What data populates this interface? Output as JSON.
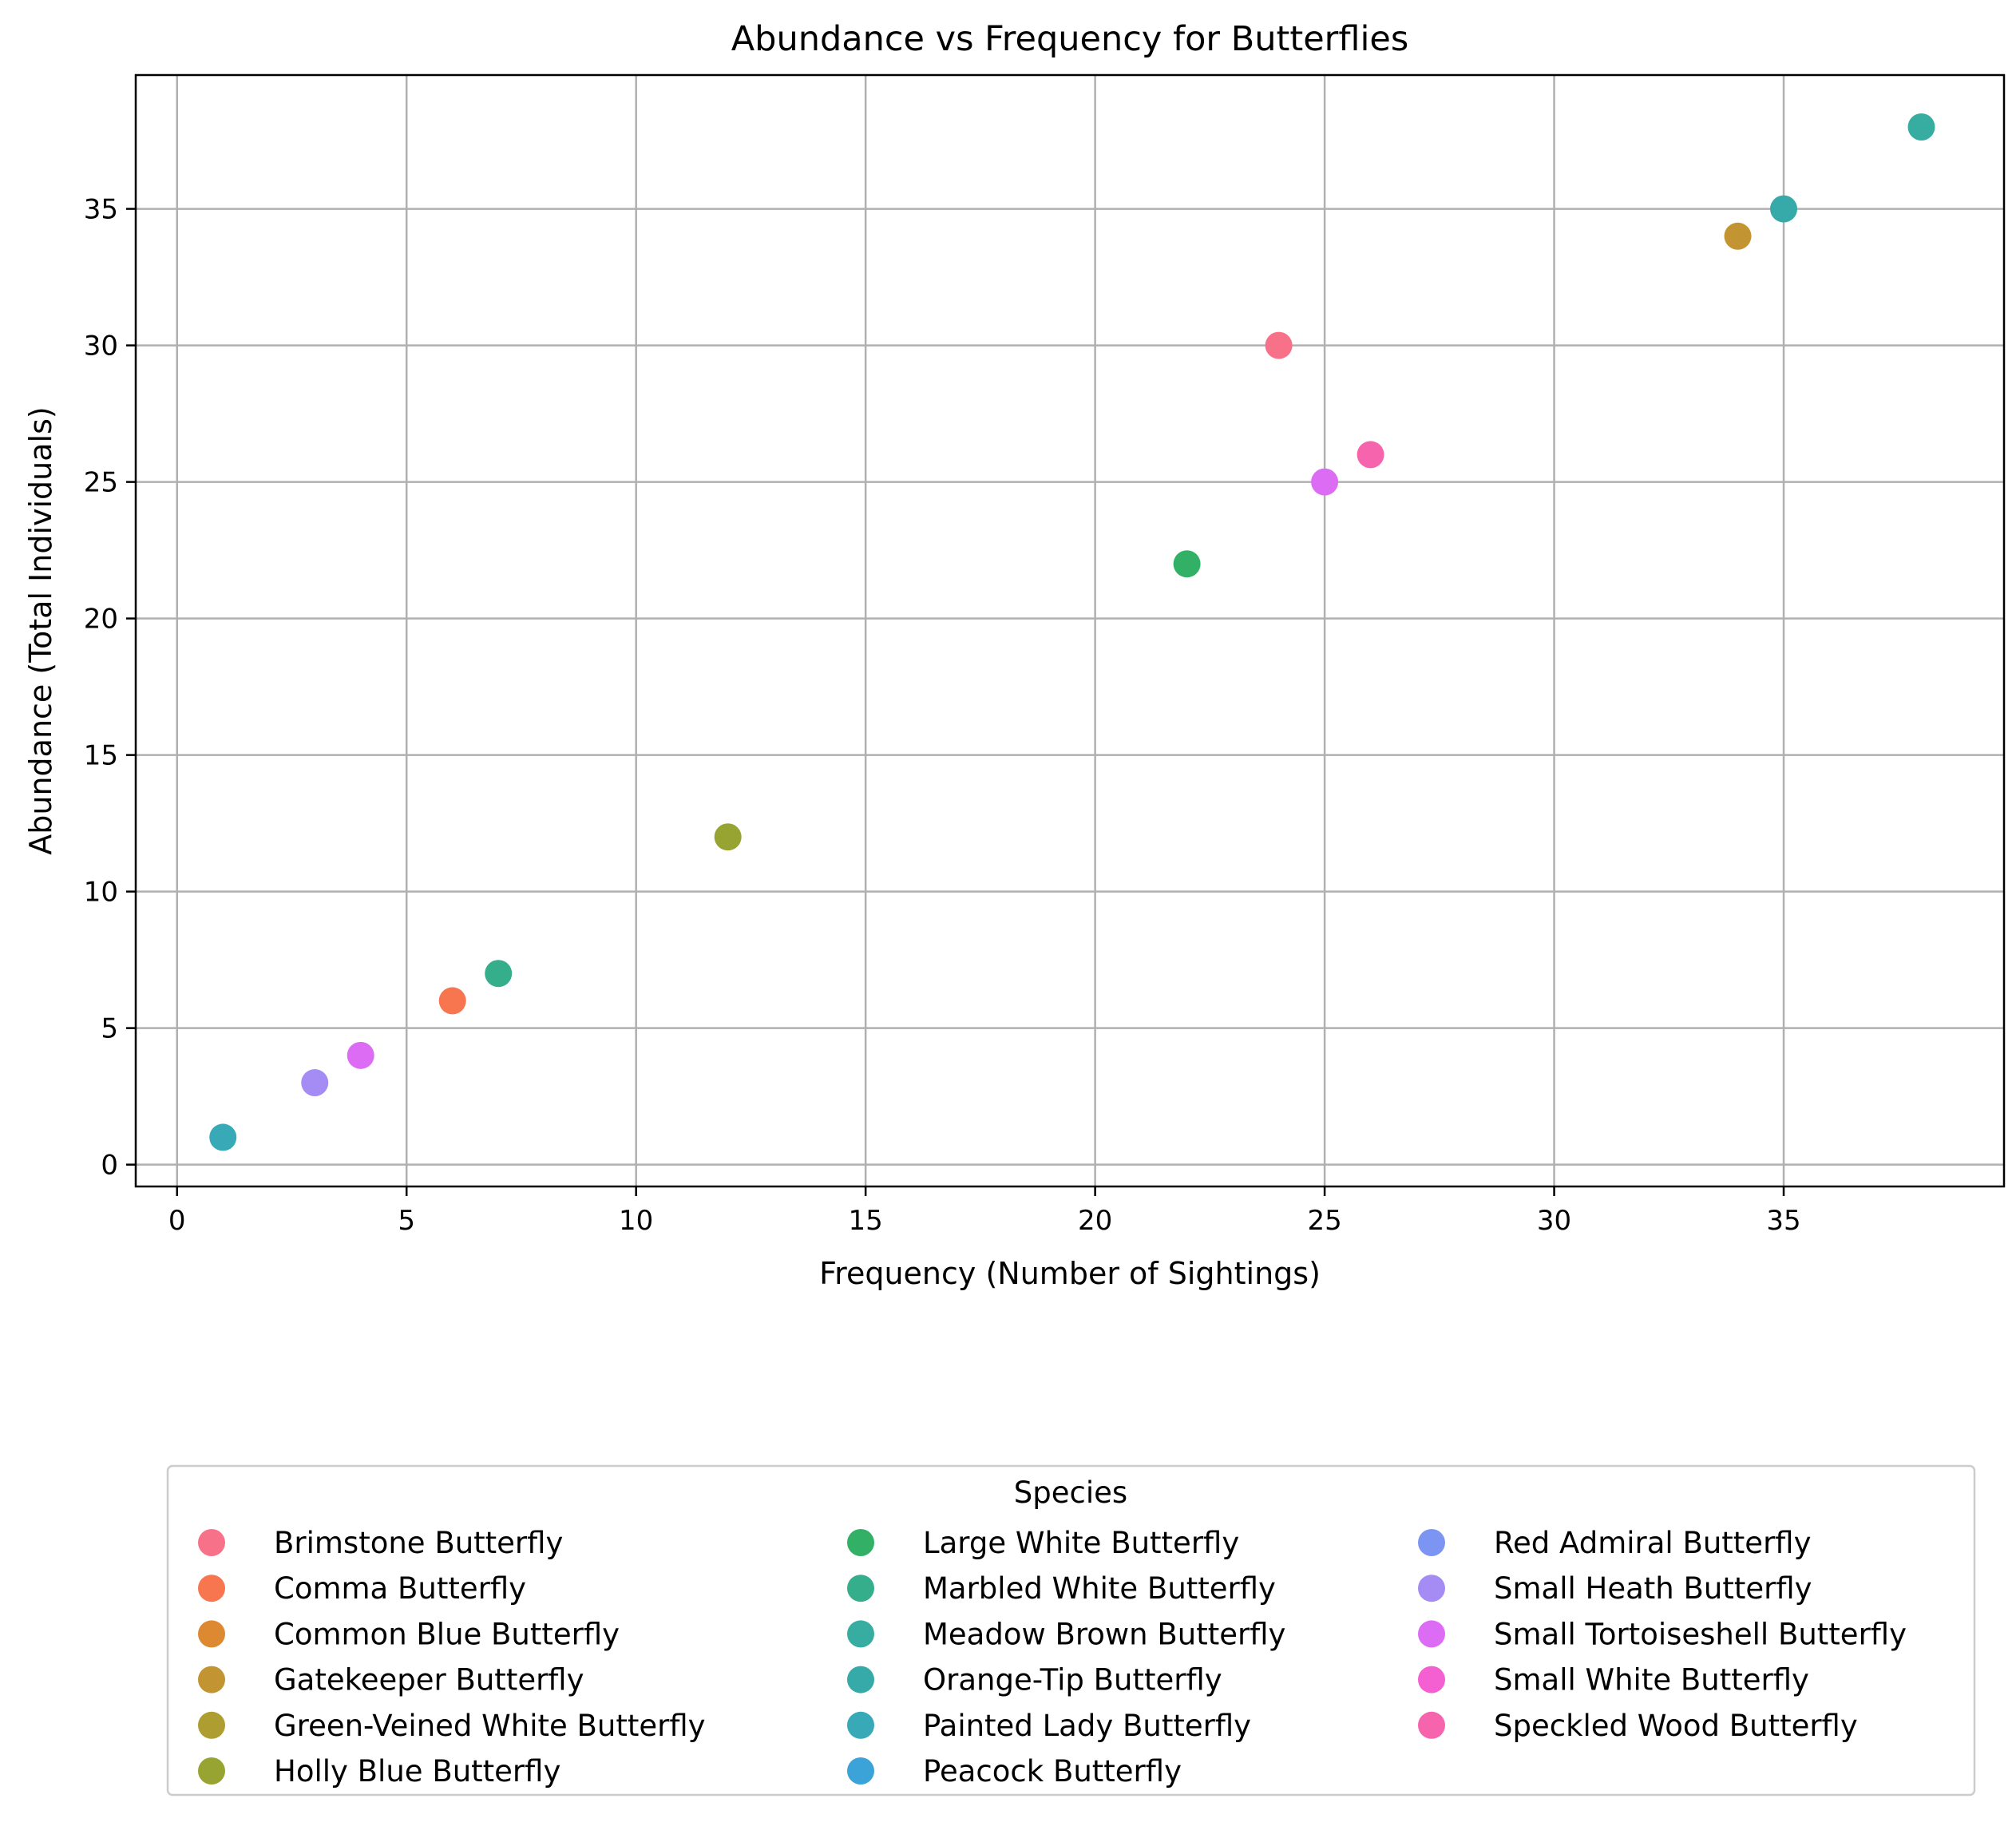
{
  "chart_data": {
    "type": "scatter",
    "title": "Abundance vs Frequency for Butterflies",
    "xlabel": "Frequency (Number of Sightings)",
    "ylabel": "Abundance (Total Individuals)",
    "xlim": [
      -0.9,
      39.8
    ],
    "ylim": [
      -0.8,
      39.9
    ],
    "xticks": [
      0,
      5,
      10,
      15,
      20,
      25,
      30,
      35
    ],
    "yticks": [
      0,
      5,
      10,
      15,
      20,
      25,
      30,
      35
    ],
    "grid": true,
    "legend": {
      "title": "Species",
      "placement": "below-center",
      "columns": 3
    },
    "series": [
      {
        "name": "Brimstone Butterfly",
        "color": "#f77189",
        "points": [
          {
            "x": 24,
            "y": 30
          }
        ]
      },
      {
        "name": "Comma Butterfly",
        "color": "#f7754f",
        "points": [
          {
            "x": 6,
            "y": 6
          }
        ]
      },
      {
        "name": "Common Blue Butterfly",
        "color": "#dc8932",
        "points": []
      },
      {
        "name": "Gatekeeper Butterfly",
        "color": "#c39532",
        "points": [
          {
            "x": 34,
            "y": 34
          }
        ]
      },
      {
        "name": "Green-Veined White Butterfly",
        "color": "#ae9d31",
        "points": []
      },
      {
        "name": "Holly Blue Butterfly",
        "color": "#97a431",
        "points": [
          {
            "x": 12,
            "y": 12
          }
        ]
      },
      {
        "name": "Large White Butterfly",
        "color": "#32b166",
        "points": [
          {
            "x": 22,
            "y": 22
          }
        ]
      },
      {
        "name": "Marbled White Butterfly",
        "color": "#34ae8b",
        "points": [
          {
            "x": 7,
            "y": 7
          }
        ]
      },
      {
        "name": "Meadow Brown Butterfly",
        "color": "#36ada0",
        "points": [
          {
            "x": 38,
            "y": 38
          }
        ]
      },
      {
        "name": "Orange-Tip Butterfly",
        "color": "#36aaa8",
        "points": [
          {
            "x": 35,
            "y": 35
          }
        ]
      },
      {
        "name": "Painted Lady Butterfly",
        "color": "#38a9b6",
        "points": [
          {
            "x": 1,
            "y": 1
          }
        ]
      },
      {
        "name": "Peacock Butterfly",
        "color": "#3ba3d7",
        "points": []
      },
      {
        "name": "Red Admiral Butterfly",
        "color": "#7c95f3",
        "points": []
      },
      {
        "name": "Small Heath Butterfly",
        "color": "#a48cf4",
        "points": [
          {
            "x": 3,
            "y": 3
          }
        ]
      },
      {
        "name": "Small Tortoiseshell Butterfly",
        "color": "#dc6cf4",
        "points": [
          {
            "x": 4,
            "y": 4
          },
          {
            "x": 25,
            "y": 25
          }
        ]
      },
      {
        "name": "Small White Butterfly",
        "color": "#f45fd2",
        "points": []
      },
      {
        "name": "Speckled Wood Butterfly",
        "color": "#f564ac",
        "points": [
          {
            "x": 26,
            "y": 26
          }
        ]
      }
    ]
  }
}
